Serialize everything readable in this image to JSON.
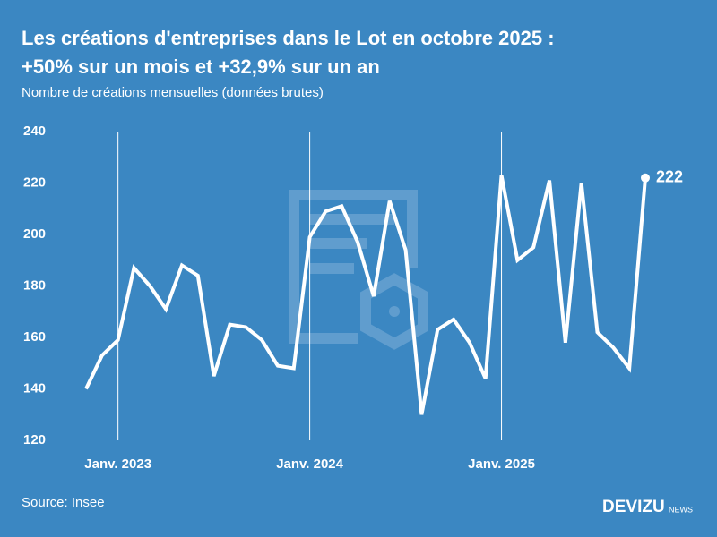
{
  "chart_data": {
    "type": "line",
    "title": "Les créations d'entreprises dans le Lot en octobre 2025 :",
    "title_line2": "+50% sur un mois et +32,9% sur un an",
    "subtitle": "Nombre de créations mensuelles (données brutes)",
    "source": "Source: Insee",
    "brand": "DEVIZU",
    "brand_suffix": "NEWS",
    "categories": [
      null,
      null,
      "Janv. 2023",
      null,
      null,
      null,
      null,
      null,
      null,
      null,
      null,
      null,
      null,
      null,
      "Janv. 2024",
      null,
      null,
      null,
      null,
      null,
      null,
      null,
      null,
      null,
      null,
      null,
      "Janv. 2025",
      null,
      null,
      null,
      null,
      null,
      null,
      null,
      null,
      null
    ],
    "series": [
      {
        "name": "Créations",
        "color": "#ffffff",
        "values": [
          140,
          153,
          159,
          187,
          180,
          171,
          188,
          184,
          145,
          165,
          164,
          159,
          149,
          148,
          199,
          209,
          211,
          197,
          176,
          213,
          194,
          130,
          163,
          167,
          158,
          144,
          223,
          190,
          195,
          221,
          158,
          220,
          162,
          156,
          148,
          222
        ]
      }
    ],
    "ylim": [
      120,
      240
    ],
    "yticks": [
      120,
      140,
      160,
      180,
      200,
      220,
      240
    ],
    "grid": "x"
  }
}
